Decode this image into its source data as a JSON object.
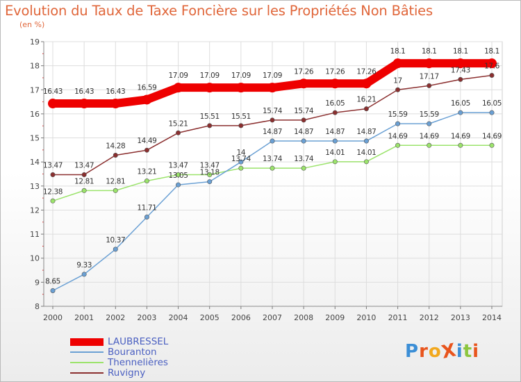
{
  "title": "Evolution du Taux de Taxe Foncière sur les Propriétés Non Bâties",
  "unit_label": "(en %)",
  "brand": {
    "text": "ProXiti",
    "letters": [
      "P",
      "r",
      "o",
      "X",
      "i",
      "t",
      "i"
    ],
    "colors": [
      "#3b8ed6",
      "#e8541c",
      "#f2a81d",
      "#e8541c",
      "#3b8ed6",
      "#8cc63f",
      "#e8541c"
    ]
  },
  "chart_data": {
    "type": "line",
    "x": [
      2000,
      2001,
      2002,
      2003,
      2004,
      2005,
      2006,
      2007,
      2008,
      2009,
      2010,
      2011,
      2012,
      2013,
      2014
    ],
    "ylim": [
      8,
      19
    ],
    "yticks": [
      8,
      9,
      10,
      11,
      12,
      13,
      14,
      15,
      16,
      17,
      18,
      19
    ],
    "grid": true,
    "legend_position": "bottom-left",
    "series": [
      {
        "name": "LAUBRESSEL",
        "color": "#ee0000",
        "width": 12,
        "values": [
          16.43,
          16.43,
          16.43,
          16.59,
          17.09,
          17.09,
          17.09,
          17.09,
          17.26,
          17.26,
          17.26,
          18.1,
          18.1,
          18.1,
          18.1
        ],
        "labels": [
          "16.43",
          "16.43",
          "16.43",
          "16.59",
          "17.09",
          "17.09",
          "17.09",
          "17.09",
          "17.26",
          "17.26",
          "17.26",
          "18.1",
          "18.1",
          "18.1",
          "18.1"
        ]
      },
      {
        "name": "Bouranton",
        "color": "#6aa0d4",
        "width": 1.5,
        "values": [
          8.65,
          9.33,
          10.37,
          11.71,
          13.05,
          13.18,
          14.0,
          14.87,
          14.87,
          14.87,
          14.87,
          15.59,
          15.59,
          16.05,
          16.05
        ],
        "labels": [
          "8.65",
          "9.33",
          "10.37",
          "11.71",
          "13.05",
          "13.18",
          "14",
          "14.87",
          "14.87",
          "14.87",
          "14.87",
          "15.59",
          "15.59",
          "16.05",
          "16.05"
        ]
      },
      {
        "name": "Thennelières",
        "color": "#9be36b",
        "width": 1.5,
        "values": [
          12.38,
          12.81,
          12.81,
          13.21,
          13.47,
          13.47,
          13.74,
          13.74,
          13.74,
          14.01,
          14.01,
          14.69,
          14.69,
          14.69,
          14.69
        ],
        "labels": [
          "12.38",
          "12.81",
          "12.81",
          "13.21",
          "13.47",
          "13.47",
          "13.74",
          "13.74",
          "13.74",
          "14.01",
          "14.01",
          "14.69",
          "14.69",
          "14.69",
          "14.69"
        ]
      },
      {
        "name": "Ruvigny",
        "color": "#8b2f2f",
        "width": 1.5,
        "values": [
          13.47,
          13.47,
          14.28,
          14.49,
          15.21,
          15.51,
          15.51,
          15.74,
          15.74,
          16.05,
          16.21,
          17.0,
          17.17,
          17.43,
          17.6
        ],
        "labels": [
          "13.47",
          "13.47",
          "14.28",
          "14.49",
          "15.21",
          "15.51",
          "15.51",
          "15.74",
          "15.74",
          "16.05",
          "16.21",
          "17",
          "17.17",
          "17.43",
          "17.6"
        ]
      }
    ]
  }
}
